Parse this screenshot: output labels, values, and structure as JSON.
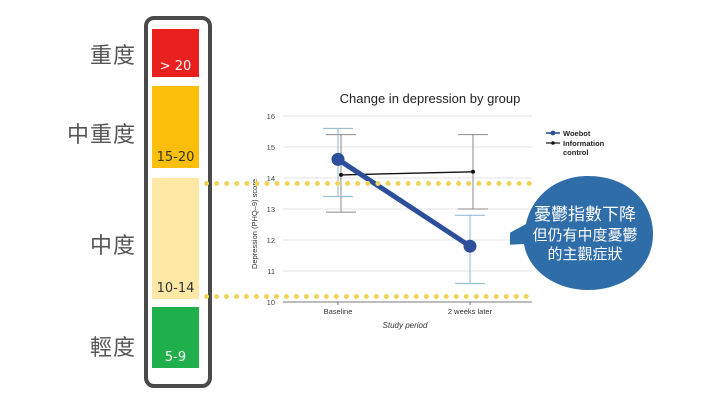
{
  "severity_scale": {
    "levels": [
      {
        "name": "重度",
        "range": "> 20",
        "color": "#e8201e",
        "text_color": "#ffffff"
      },
      {
        "name": "中重度",
        "range": "15-20",
        "color": "#fbbf09",
        "text_color": "#333333"
      },
      {
        "name": "中度",
        "range": "10-14",
        "color": "#fde8a6",
        "text_color": "#333333"
      },
      {
        "name": "輕度",
        "range": "5-9",
        "color": "#1fb04b",
        "text_color": "#ffffff"
      }
    ]
  },
  "callout": {
    "line1": "憂鬱指數下降",
    "line2": "但仍有中度憂鬱",
    "line3": "的主觀症狀",
    "color": "#2f6da8"
  },
  "chart_data": {
    "type": "line",
    "title": "Change in depression by group",
    "xlabel": "Study period",
    "ylabel": "Depression (PHQ–9) score",
    "categories": [
      "Baseline",
      "2 weeks later"
    ],
    "ylim": [
      10,
      16
    ],
    "yticks": [
      10,
      11,
      12,
      13,
      14,
      15,
      16
    ],
    "grid": true,
    "legend_position": "top-right",
    "series": [
      {
        "name": "Woebot",
        "values": [
          14.6,
          11.8
        ],
        "error_low": [
          13.4,
          10.6
        ],
        "error_high": [
          15.6,
          12.8
        ],
        "color": "#2c4e9b"
      },
      {
        "name": "Information control",
        "values": [
          14.1,
          14.2
        ],
        "error_low": [
          12.9,
          13.0
        ],
        "error_high": [
          15.4,
          15.4
        ],
        "color": "#111111"
      }
    ]
  }
}
